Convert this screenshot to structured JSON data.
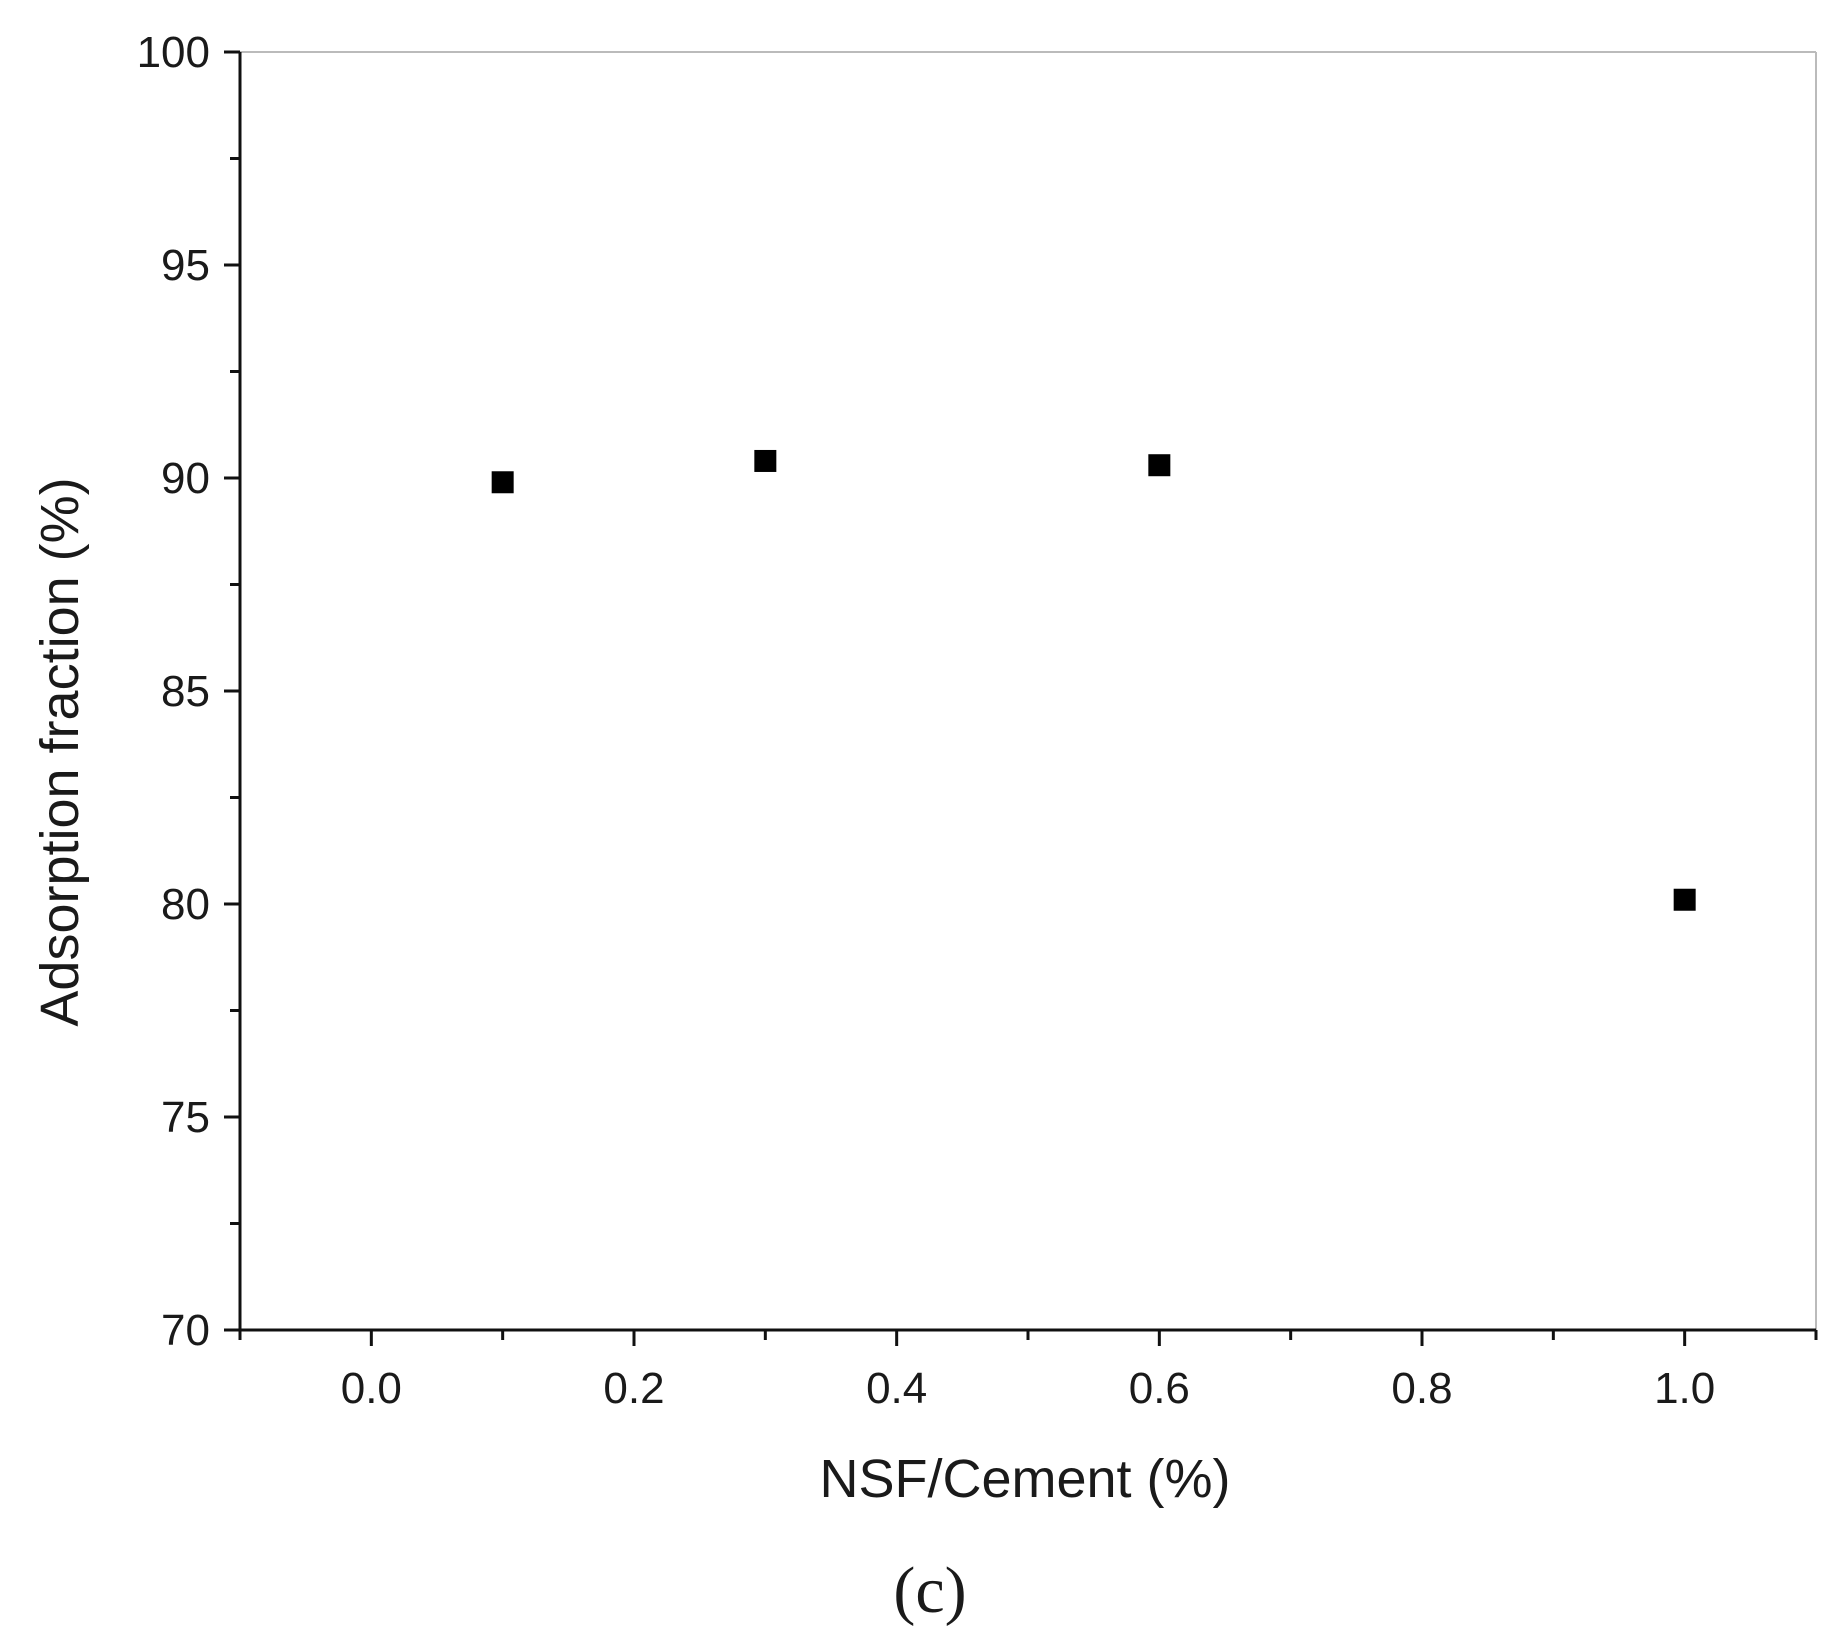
{
  "chart_data": {
    "type": "scatter",
    "xlabel": "NSF/Cement (%)",
    "ylabel": "Adsorption fraction (%)",
    "panel_label": "(c)",
    "xlim": [
      -0.1,
      1.1
    ],
    "ylim": [
      70,
      100
    ],
    "x_ticks": [
      0.0,
      0.2,
      0.4,
      0.6,
      0.8,
      1.0
    ],
    "x_tick_labels": [
      "0.0",
      "0.2",
      "0.4",
      "0.6",
      "0.8",
      "1.0"
    ],
    "x_minor_ticks": [
      -0.1,
      0.1,
      0.3,
      0.5,
      0.7,
      0.9,
      1.1
    ],
    "y_ticks": [
      70,
      75,
      80,
      85,
      90,
      95,
      100
    ],
    "y_tick_labels": [
      "70",
      "75",
      "80",
      "85",
      "90",
      "95",
      "100"
    ],
    "y_minor_ticks": [
      72.5,
      77.5,
      82.5,
      87.5,
      92.5,
      97.5
    ],
    "grid": false,
    "marker_color": "#000000",
    "series": [
      {
        "marker": "square",
        "x": [
          0.1,
          0.3,
          0.6,
          1.0
        ],
        "y": [
          89.9,
          90.4,
          90.3,
          80.1
        ]
      }
    ]
  }
}
